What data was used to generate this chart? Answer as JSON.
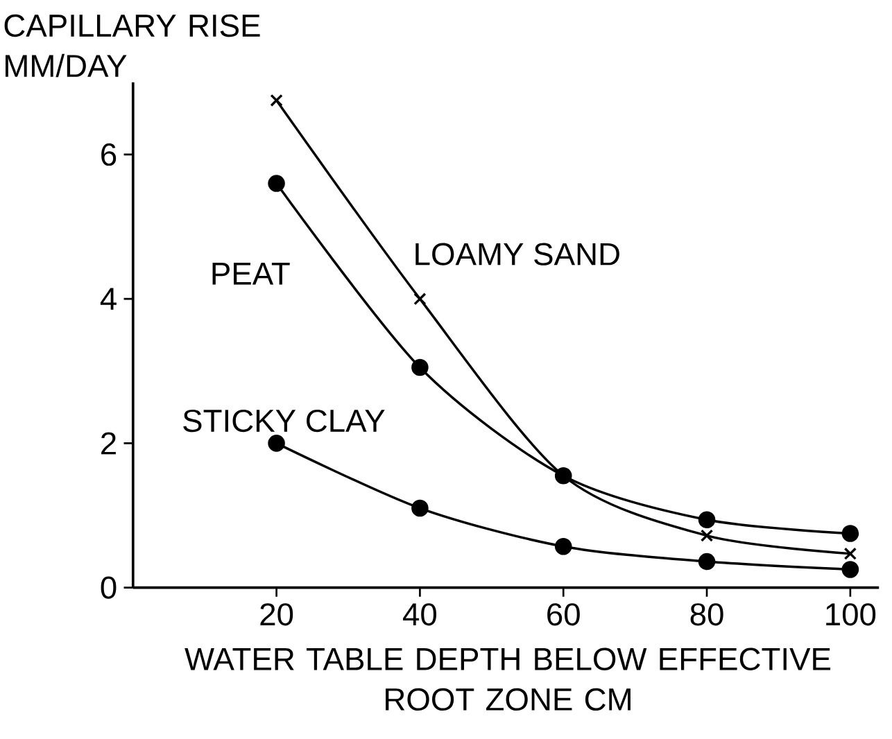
{
  "chart_data": {
    "type": "line",
    "ylabel": "CAPILLARY RISE\nMM/DAY",
    "xlabel": "WATER TABLE DEPTH BELOW EFFECTIVE\nROOT ZONE CM",
    "x": [
      20,
      40,
      60,
      80,
      100
    ],
    "series": [
      {
        "name": "LOAMY SAND",
        "color": "#000000",
        "marker": "cross",
        "values": [
          6.75,
          4.0,
          1.55,
          0.72,
          0.47
        ]
      },
      {
        "name": "PEAT",
        "color": "#000000",
        "marker": "circle",
        "values": [
          5.6,
          3.05,
          1.55,
          0.94,
          0.75
        ]
      },
      {
        "name": "STICKY CLAY",
        "color": "#000000",
        "marker": "circle",
        "values": [
          2.0,
          1.1,
          0.57,
          0.36,
          0.25
        ]
      }
    ],
    "xlim": [
      0,
      104
    ],
    "ylim": [
      0,
      7
    ],
    "xticks": [
      20,
      40,
      60,
      80,
      100
    ],
    "yticks": [
      0,
      2,
      4,
      6
    ]
  }
}
